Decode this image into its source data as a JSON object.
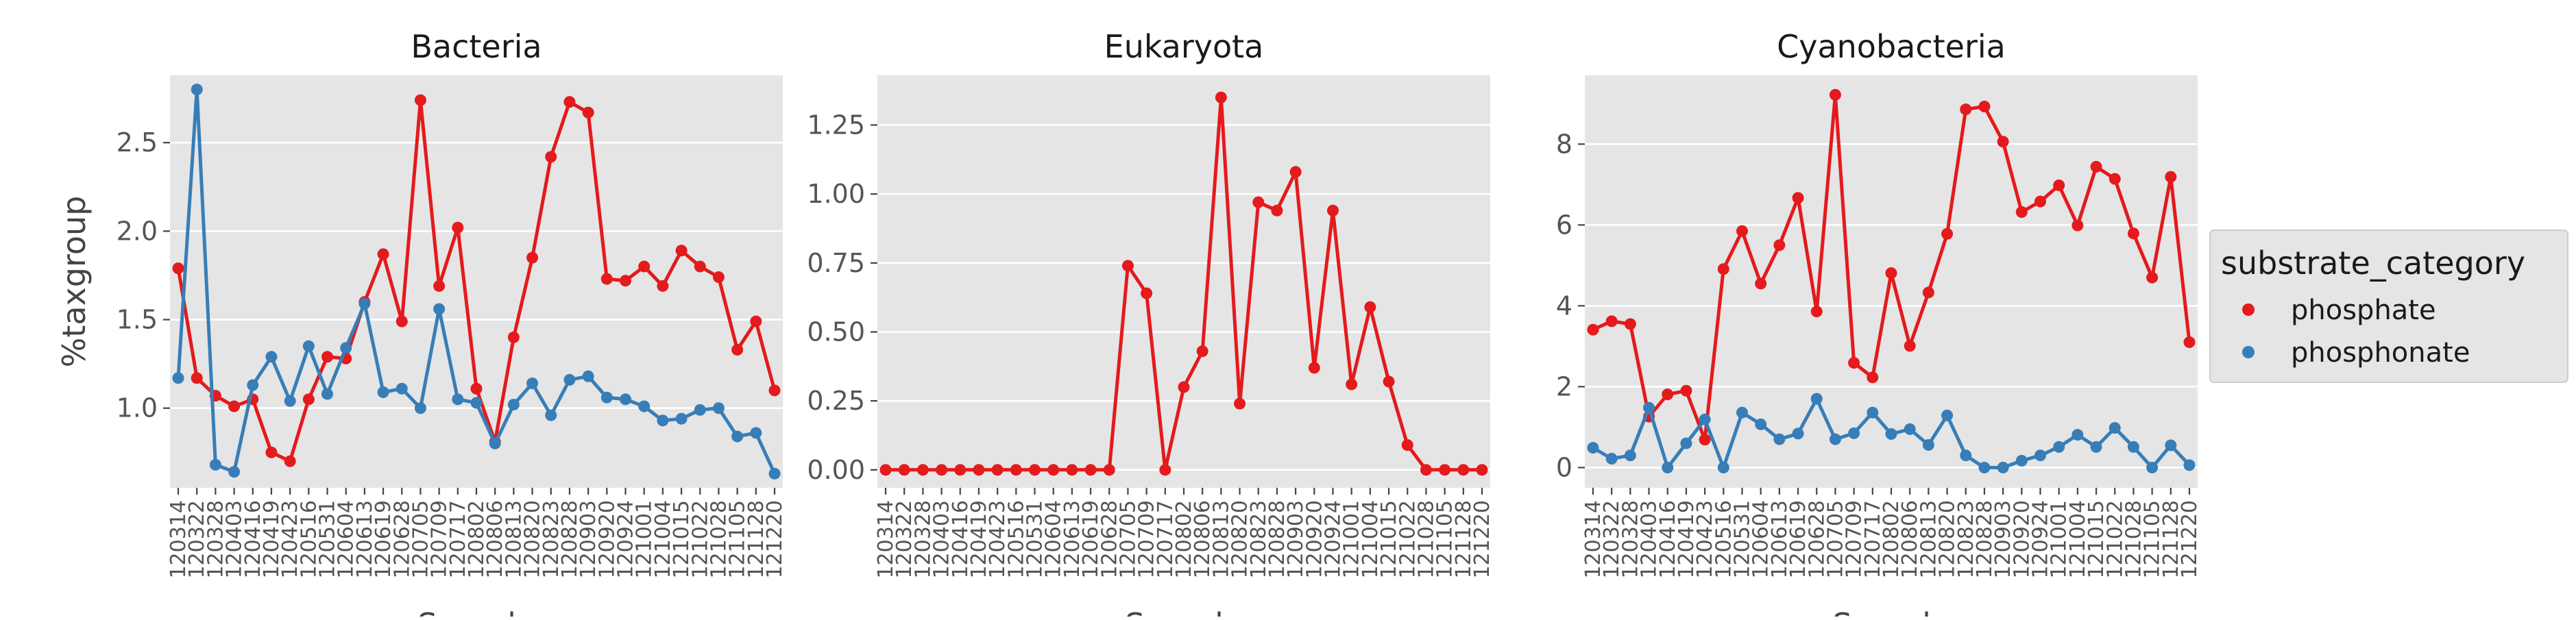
{
  "chart_data": [
    {
      "type": "line",
      "title": "Bacteria",
      "ylabel": "%taxgroup",
      "xlabel": "Sample",
      "ylim": [
        0.55,
        2.88
      ],
      "yticks": [
        1.0,
        1.5,
        2.0,
        2.5
      ],
      "ytick_labels": [
        "1.0",
        "1.5",
        "2.0",
        "2.5"
      ],
      "grid": true,
      "categories": [
        "120314",
        "120322",
        "120328",
        "120403",
        "120416",
        "120419",
        "120423",
        "120516",
        "120531",
        "120604",
        "120613",
        "120619",
        "120628",
        "120705",
        "120709",
        "120717",
        "120802",
        "120806",
        "120813",
        "120820",
        "120823",
        "120828",
        "120903",
        "120920",
        "120924",
        "121001",
        "121004",
        "121015",
        "121022",
        "121028",
        "121105",
        "121128",
        "121220"
      ],
      "series": [
        {
          "name": "phosphate",
          "color": "#e41a1c",
          "values": [
            1.79,
            1.17,
            1.07,
            1.01,
            1.05,
            0.75,
            0.7,
            1.05,
            1.29,
            1.28,
            1.6,
            1.87,
            1.49,
            2.74,
            1.69,
            2.02,
            1.11,
            0.81,
            1.4,
            1.85,
            2.42,
            2.73,
            2.67,
            1.73,
            1.72,
            1.8,
            1.69,
            1.89,
            1.8,
            1.74,
            1.33,
            1.49,
            1.1
          ]
        },
        {
          "name": "phosphonate",
          "color": "#377eb8",
          "values": [
            1.17,
            2.8,
            0.68,
            0.64,
            1.13,
            1.29,
            1.04,
            1.35,
            1.08,
            1.34,
            1.59,
            1.09,
            1.11,
            1.0,
            1.56,
            1.05,
            1.03,
            0.8,
            1.02,
            1.14,
            0.96,
            1.16,
            1.18,
            1.06,
            1.05,
            1.01,
            0.93,
            0.94,
            0.99,
            1.0,
            0.84,
            0.86,
            0.63
          ]
        }
      ]
    },
    {
      "type": "line",
      "title": "Eukaryota",
      "ylabel": "",
      "xlabel": "Sample",
      "ylim": [
        -0.065,
        1.43
      ],
      "yticks": [
        0.0,
        0.25,
        0.5,
        0.75,
        1.0,
        1.25
      ],
      "ytick_labels": [
        "0.00",
        "0.25",
        "0.50",
        "0.75",
        "1.00",
        "1.25"
      ],
      "grid": true,
      "categories": [
        "120314",
        "120322",
        "120328",
        "120403",
        "120416",
        "120419",
        "120423",
        "120516",
        "120531",
        "120604",
        "120613",
        "120619",
        "120628",
        "120705",
        "120709",
        "120717",
        "120802",
        "120806",
        "120813",
        "120820",
        "120823",
        "120828",
        "120903",
        "120920",
        "120924",
        "121001",
        "121004",
        "121015",
        "121022",
        "121028",
        "121105",
        "121128",
        "121220"
      ],
      "series": [
        {
          "name": "phosphate",
          "color": "#e41a1c",
          "values": [
            0,
            0,
            0,
            0,
            0,
            0,
            0,
            0,
            0,
            0,
            0,
            0,
            0,
            0.74,
            0.64,
            0,
            0.3,
            0.43,
            1.35,
            0.24,
            0.97,
            0.94,
            1.08,
            0.37,
            0.94,
            0.31,
            0.59,
            0.32,
            0.09,
            0,
            0,
            0,
            0
          ]
        }
      ]
    },
    {
      "type": "line",
      "title": "Cyanobacteria",
      "ylabel": "",
      "xlabel": "Sample",
      "ylim": [
        -0.5,
        9.7
      ],
      "yticks": [
        0,
        2,
        4,
        6,
        8
      ],
      "ytick_labels": [
        "0",
        "2",
        "4",
        "6",
        "8"
      ],
      "grid": true,
      "categories": [
        "120314",
        "120322",
        "120328",
        "120403",
        "120416",
        "120419",
        "120423",
        "120516",
        "120531",
        "120604",
        "120613",
        "120619",
        "120628",
        "120705",
        "120709",
        "120717",
        "120802",
        "120806",
        "120813",
        "120820",
        "120823",
        "120828",
        "120903",
        "120920",
        "120924",
        "121001",
        "121004",
        "121015",
        "121022",
        "121028",
        "121105",
        "121128",
        "121220"
      ],
      "series": [
        {
          "name": "phosphate",
          "color": "#e41a1c",
          "values": [
            3.41,
            3.62,
            3.55,
            1.26,
            1.81,
            1.9,
            0.69,
            4.91,
            5.85,
            4.55,
            5.5,
            6.67,
            3.86,
            9.22,
            2.59,
            2.23,
            4.81,
            3.01,
            4.33,
            5.78,
            8.86,
            8.93,
            8.06,
            6.32,
            6.58,
            6.98,
            5.99,
            7.44,
            7.14,
            5.79,
            4.7,
            7.19,
            3.1
          ]
        },
        {
          "name": "phosphonate",
          "color": "#377eb8",
          "values": [
            0.49,
            0.22,
            0.3,
            1.48,
            0,
            0.6,
            1.19,
            0,
            1.36,
            1.07,
            0.7,
            0.84,
            1.7,
            0.7,
            0.85,
            1.36,
            0.83,
            0.95,
            0.56,
            1.29,
            0.3,
            0,
            0,
            0.17,
            0.3,
            0.51,
            0.81,
            0.51,
            0.98,
            0.51,
            0,
            0.55,
            0.06
          ]
        }
      ]
    }
  ],
  "legend": {
    "title": "substrate_category",
    "placement": "right",
    "items": [
      {
        "label": "phosphate",
        "color": "#e41a1c"
      },
      {
        "label": "phosphonate",
        "color": "#377eb8"
      }
    ]
  }
}
